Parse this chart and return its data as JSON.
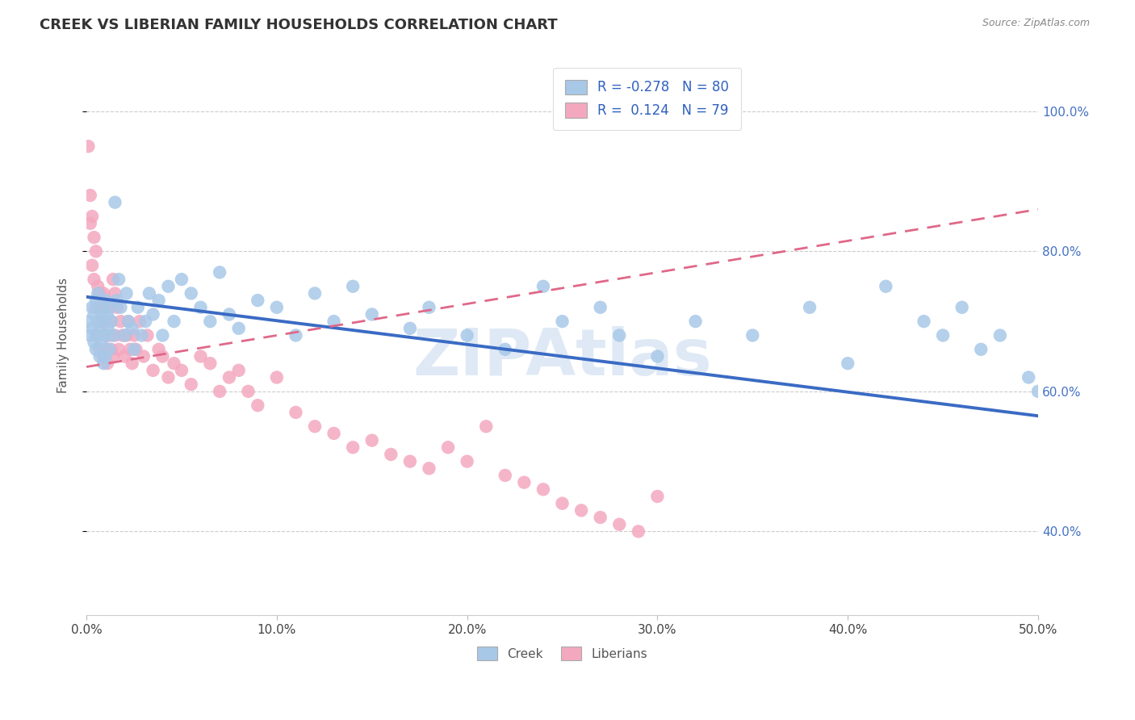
{
  "title": "CREEK VS LIBERIAN FAMILY HOUSEHOLDS CORRELATION CHART",
  "source": "Source: ZipAtlas.com",
  "ylabel": "Family Households",
  "xlim": [
    0.0,
    50.0
  ],
  "ylim": [
    28.0,
    108.0
  ],
  "yticks": [
    40.0,
    60.0,
    80.0,
    100.0
  ],
  "ytick_labels": [
    "40.0%",
    "60.0%",
    "80.0%",
    "100.0%"
  ],
  "xticks": [
    0,
    10,
    20,
    30,
    40,
    50
  ],
  "xtick_labels": [
    "0.0%",
    "10.0%",
    "20.0%",
    "30.0%",
    "40.0%",
    "50.0%"
  ],
  "creek_R": -0.278,
  "creek_N": 80,
  "liberian_R": 0.124,
  "liberian_N": 79,
  "creek_color": "#a8c8e8",
  "creek_line_color": "#3a6bc4",
  "liberian_color": "#f4a8c0",
  "liberian_line_color": "#e06888",
  "background_color": "#ffffff",
  "watermark": "ZIPAtlas",
  "creek_trend_x0": 0.0,
  "creek_trend_y0": 73.5,
  "creek_trend_x1": 50.0,
  "creek_trend_y1": 56.5,
  "liberian_trend_x0": 0.0,
  "liberian_trend_y0": 63.5,
  "liberian_trend_x1": 50.0,
  "liberian_trend_y1": 86.0,
  "creek_scatter_x": [
    0.1,
    0.2,
    0.3,
    0.3,
    0.4,
    0.4,
    0.5,
    0.5,
    0.5,
    0.6,
    0.6,
    0.7,
    0.7,
    0.8,
    0.8,
    0.8,
    0.9,
    0.9,
    1.0,
    1.0,
    1.0,
    1.1,
    1.1,
    1.2,
    1.2,
    1.3,
    1.4,
    1.5,
    1.6,
    1.7,
    1.8,
    2.0,
    2.1,
    2.2,
    2.4,
    2.5,
    2.7,
    2.9,
    3.1,
    3.3,
    3.5,
    3.8,
    4.0,
    4.3,
    4.6,
    5.0,
    5.5,
    6.0,
    6.5,
    7.0,
    7.5,
    8.0,
    9.0,
    10.0,
    11.0,
    12.0,
    13.0,
    14.0,
    15.0,
    17.0,
    18.0,
    20.0,
    22.0,
    24.0,
    25.0,
    27.0,
    28.0,
    30.0,
    32.0,
    35.0,
    38.0,
    40.0,
    42.0,
    44.0,
    45.0,
    46.0,
    47.0,
    48.0,
    49.5,
    50.0
  ],
  "creek_scatter_y": [
    70,
    68,
    72,
    69,
    71,
    67,
    73,
    68,
    66,
    70,
    74,
    69,
    65,
    71,
    67,
    72,
    70,
    64,
    68,
    73,
    65,
    71,
    69,
    72,
    66,
    70,
    68,
    87,
    73,
    76,
    72,
    68,
    74,
    70,
    69,
    66,
    72,
    68,
    70,
    74,
    71,
    73,
    68,
    75,
    70,
    76,
    74,
    72,
    70,
    77,
    71,
    69,
    73,
    72,
    68,
    74,
    70,
    75,
    71,
    69,
    72,
    68,
    66,
    75,
    70,
    72,
    68,
    65,
    70,
    68,
    72,
    64,
    75,
    70,
    68,
    72,
    66,
    68,
    62,
    60
  ],
  "liberian_scatter_x": [
    0.1,
    0.2,
    0.2,
    0.3,
    0.3,
    0.4,
    0.4,
    0.5,
    0.5,
    0.6,
    0.6,
    0.7,
    0.7,
    0.8,
    0.8,
    0.9,
    0.9,
    1.0,
    1.0,
    1.0,
    1.1,
    1.1,
    1.2,
    1.2,
    1.3,
    1.3,
    1.4,
    1.4,
    1.5,
    1.5,
    1.6,
    1.7,
    1.8,
    1.9,
    2.0,
    2.1,
    2.2,
    2.3,
    2.4,
    2.5,
    2.6,
    2.8,
    3.0,
    3.2,
    3.5,
    3.8,
    4.0,
    4.3,
    4.6,
    5.0,
    5.5,
    6.0,
    6.5,
    7.0,
    7.5,
    8.0,
    8.5,
    9.0,
    10.0,
    11.0,
    12.0,
    13.0,
    14.0,
    15.0,
    16.0,
    17.0,
    18.0,
    19.0,
    20.0,
    21.0,
    22.0,
    23.0,
    24.0,
    25.0,
    26.0,
    27.0,
    28.0,
    29.0,
    30.0
  ],
  "liberian_scatter_y": [
    95,
    88,
    84,
    85,
    78,
    82,
    76,
    80,
    72,
    75,
    68,
    74,
    66,
    72,
    70,
    74,
    65,
    70,
    68,
    66,
    72,
    64,
    68,
    72,
    66,
    70,
    76,
    65,
    74,
    68,
    72,
    66,
    70,
    68,
    65,
    68,
    70,
    66,
    64,
    68,
    66,
    70,
    65,
    68,
    63,
    66,
    65,
    62,
    64,
    63,
    61,
    65,
    64,
    60,
    62,
    63,
    60,
    58,
    62,
    57,
    55,
    54,
    52,
    53,
    51,
    50,
    49,
    52,
    50,
    55,
    48,
    47,
    46,
    44,
    43,
    42,
    41,
    40,
    45
  ]
}
